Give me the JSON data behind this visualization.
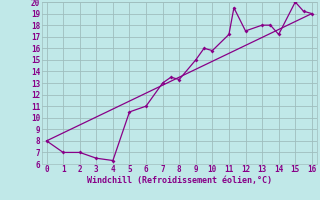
{
  "xlabel": "Windchill (Refroidissement éolien,°C)",
  "bg_color": "#c0e8e8",
  "grid_color": "#9fbebe",
  "line_color": "#880088",
  "curve1_x": [
    0,
    1,
    2,
    3,
    4,
    5,
    6,
    7,
    7.5,
    8,
    9,
    9.5,
    10,
    11,
    11.3,
    12,
    13,
    13.5,
    14,
    15,
    15.5,
    16
  ],
  "curve1_y": [
    8,
    7,
    7,
    6.5,
    6.3,
    10.5,
    11,
    13,
    13.5,
    13.3,
    15,
    16,
    15.8,
    17.2,
    19.5,
    17.5,
    18,
    18,
    17.2,
    20,
    19.2,
    19
  ],
  "curve2_x": [
    0,
    16
  ],
  "curve2_y": [
    8,
    19
  ],
  "xlim": [
    -0.3,
    16.3
  ],
  "ylim": [
    6,
    20
  ],
  "xticks": [
    0,
    1,
    2,
    3,
    4,
    5,
    6,
    7,
    8,
    9,
    10,
    11,
    12,
    13,
    14,
    15,
    16
  ],
  "yticks": [
    6,
    7,
    8,
    9,
    10,
    11,
    12,
    13,
    14,
    15,
    16,
    17,
    18,
    19,
    20
  ]
}
